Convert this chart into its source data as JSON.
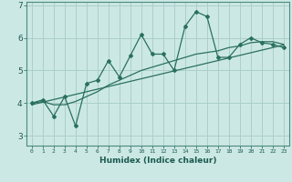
{
  "xlabel": "Humidex (Indice chaleur)",
  "bg_color": "#cce8e4",
  "line_color": "#2a7060",
  "grid_color": "#aacfca",
  "frame_color": "#4a8a80",
  "x_ticks": [
    0,
    1,
    2,
    3,
    4,
    5,
    6,
    7,
    8,
    9,
    10,
    11,
    12,
    13,
    14,
    15,
    16,
    17,
    18,
    19,
    20,
    21,
    22,
    23
  ],
  "y_ticks": [
    3,
    4,
    5,
    6,
    7
  ],
  "ylim": [
    2.7,
    7.1
  ],
  "xlim": [
    -0.5,
    23.5
  ],
  "line1_x": [
    0,
    1,
    2,
    3,
    4,
    5,
    6,
    7,
    8,
    9,
    10,
    11,
    12,
    13,
    14,
    15,
    16,
    17,
    18,
    19,
    20,
    21,
    22,
    23
  ],
  "line1_y": [
    4.0,
    4.1,
    3.6,
    4.2,
    3.3,
    4.6,
    4.7,
    5.3,
    4.8,
    5.45,
    6.1,
    5.5,
    5.5,
    5.0,
    6.35,
    6.8,
    6.65,
    5.4,
    5.4,
    5.8,
    6.0,
    5.85,
    5.8,
    5.7
  ],
  "line2_x": [
    0,
    1,
    2,
    3,
    4,
    5,
    6,
    7,
    8,
    9,
    10,
    11,
    12,
    13,
    14,
    15,
    16,
    17,
    18,
    19,
    20,
    21,
    22,
    23
  ],
  "line2_y": [
    4.0,
    4.05,
    3.95,
    3.95,
    4.05,
    4.2,
    4.35,
    4.55,
    4.7,
    4.85,
    5.0,
    5.1,
    5.2,
    5.3,
    5.4,
    5.5,
    5.55,
    5.6,
    5.7,
    5.75,
    5.85,
    5.88,
    5.88,
    5.8
  ],
  "trend_x": [
    0,
    23
  ],
  "trend_y": [
    3.95,
    5.78
  ]
}
